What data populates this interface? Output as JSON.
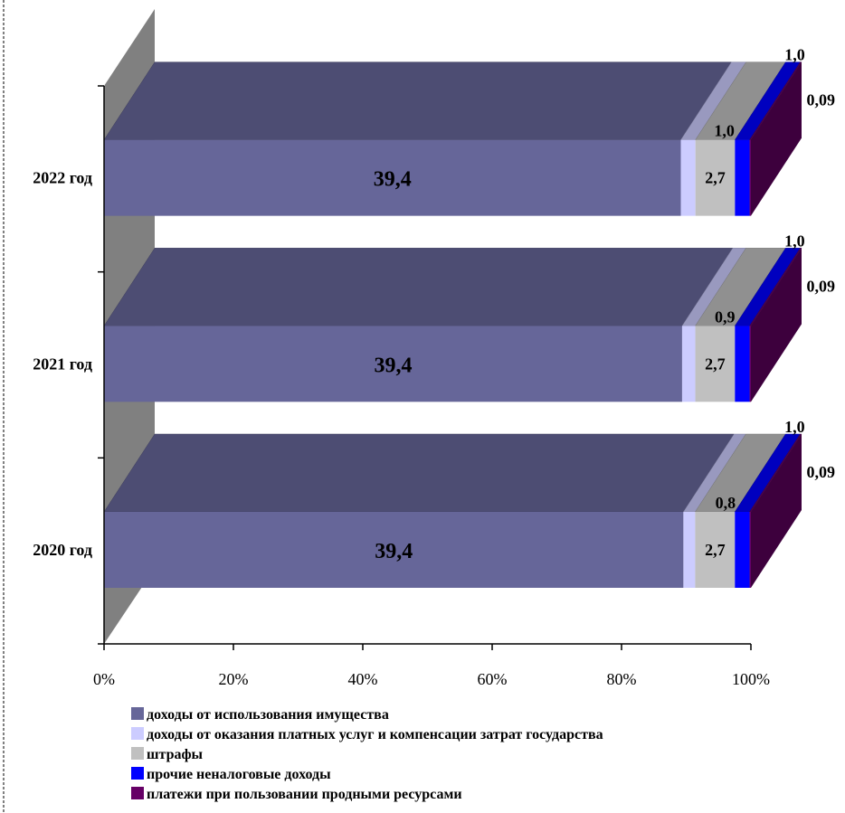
{
  "chart_data": {
    "type": "bar",
    "orientation": "horizontal",
    "stacked": "percent",
    "three_d": true,
    "categories": [
      "2020 год",
      "2021 год",
      "2022 год"
    ],
    "series": [
      {
        "name": "доходы от использования имущества",
        "values": [
          39.4,
          39.4,
          39.4
        ],
        "labels": [
          "39,4",
          "39,4",
          "39,4"
        ],
        "color": "#666699"
      },
      {
        "name": "доходы от оказания платных услуг и компенсации затрат государства",
        "values": [
          0.8,
          0.9,
          1.0
        ],
        "labels": [
          "0,8",
          "0,9",
          "1,0"
        ],
        "color": "#ccccff"
      },
      {
        "name": "штрафы",
        "values": [
          2.7,
          2.7,
          2.7
        ],
        "labels": [
          "2,7",
          "2,7",
          "2,7"
        ],
        "color": "#c0c0c0"
      },
      {
        "name": "прочие неналоговые доходы",
        "values": [
          1.0,
          1.0,
          1.0
        ],
        "labels": [
          "1,0",
          "1,0",
          "1,0"
        ],
        "color": "#0000ff"
      },
      {
        "name": "платежи при пользовании продными ресурсами",
        "values": [
          0.09,
          0.09,
          0.09
        ],
        "labels": [
          "0,09",
          "0,09",
          "0,09"
        ],
        "color": "#660066"
      }
    ],
    "x_ticks": [
      "0%",
      "20%",
      "40%",
      "60%",
      "80%",
      "100%"
    ],
    "xlim": [
      0,
      100
    ],
    "legend_position": "bottom",
    "title": "",
    "xlabel": "",
    "ylabel": ""
  }
}
